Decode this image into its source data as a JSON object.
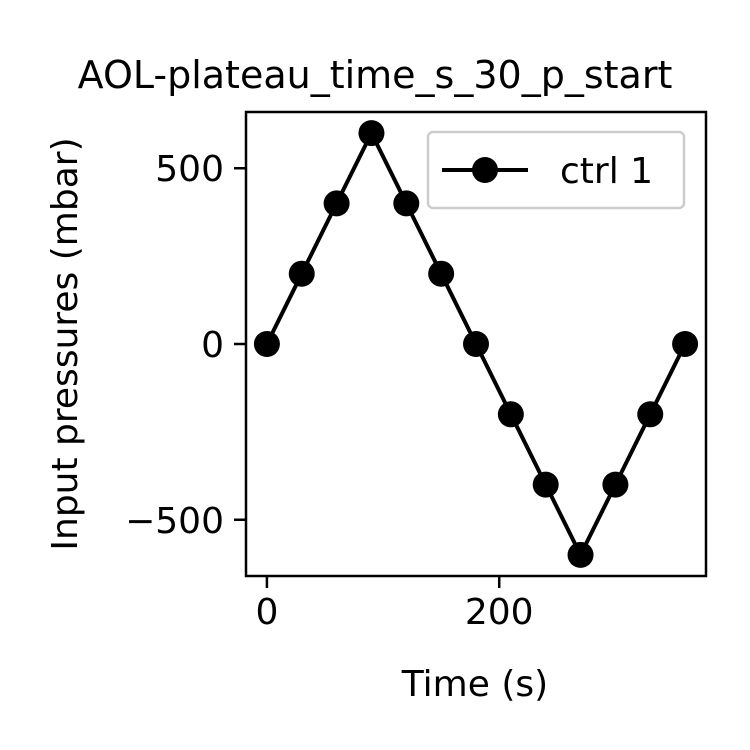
{
  "chart_data": {
    "type": "line",
    "title": "AOL-plateau_time_s_30_p_start",
    "xlabel": "Time (s)",
    "ylabel": "Input pressures (mbar)",
    "xlim": [
      -18,
      378
    ],
    "ylim": [
      -660,
      660
    ],
    "xticks": [
      0,
      200
    ],
    "xtick_labels": [
      "0",
      "200"
    ],
    "yticks": [
      -500,
      0,
      500
    ],
    "ytick_labels": [
      "−500",
      "0",
      "500"
    ],
    "grid": false,
    "legend_position": "top-right",
    "series": [
      {
        "name": "ctrl 1",
        "color": "#000000",
        "marker": "circle",
        "x": [
          0,
          30,
          60,
          90,
          120,
          150,
          180,
          210,
          240,
          270,
          300,
          330,
          360
        ],
        "y": [
          0,
          200,
          400,
          600,
          400,
          200,
          0,
          -200,
          -400,
          -600,
          -400,
          -200,
          0
        ]
      }
    ]
  }
}
